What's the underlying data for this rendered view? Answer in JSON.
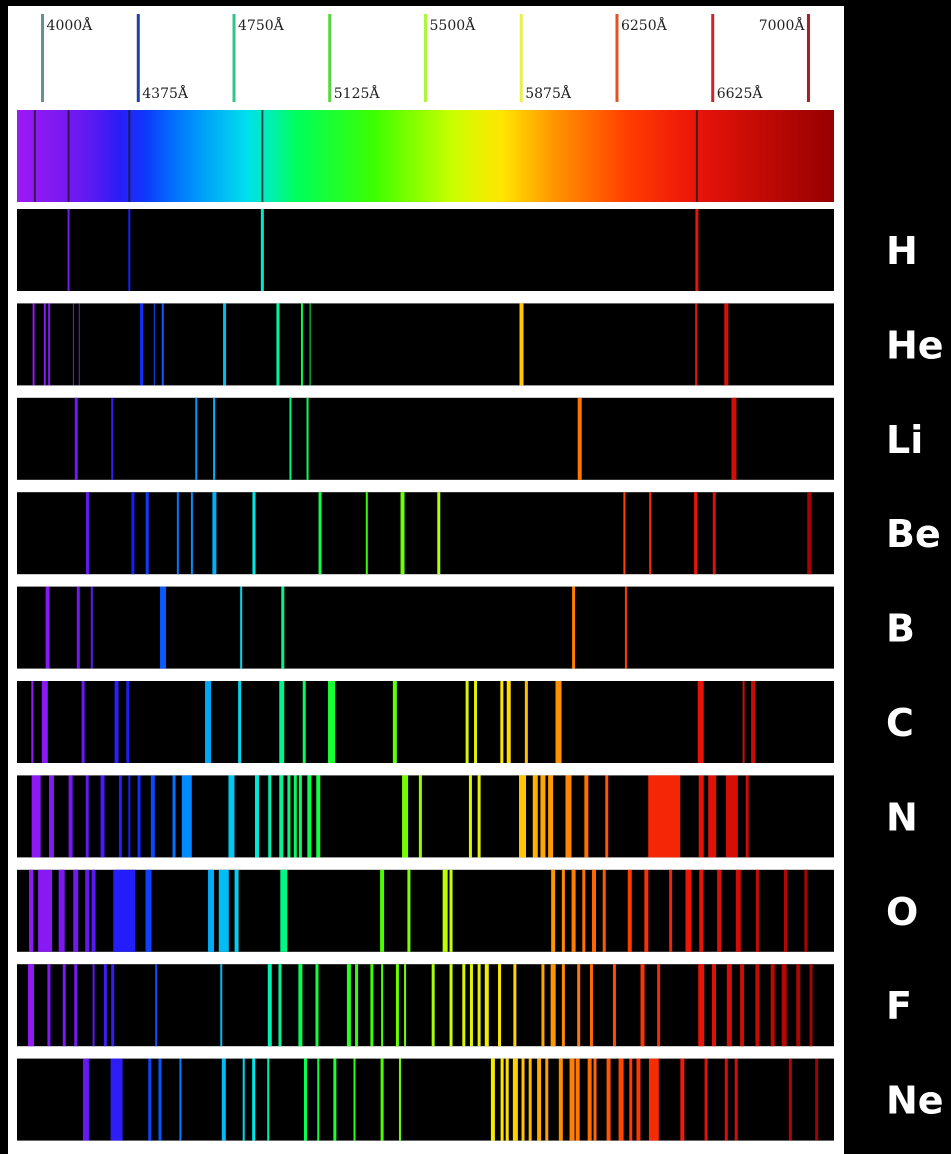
{
  "chart_data": {
    "type": "emission-spectra",
    "wavelength_unit": "Å",
    "xlim": [
      3900,
      7100
    ],
    "scale_ticks": [
      {
        "wavelength": 4000,
        "label": "4000Å",
        "color": "#6a8f8f",
        "row": "top"
      },
      {
        "wavelength": 4375,
        "label": "4375Å",
        "color": "#1f3fb0",
        "row": "bottom"
      },
      {
        "wavelength": 4750,
        "label": "4750Å",
        "color": "#33c488",
        "row": "top"
      },
      {
        "wavelength": 5125,
        "label": "5125Å",
        "color": "#55d63a",
        "row": "bottom"
      },
      {
        "wavelength": 5500,
        "label": "5500Å",
        "color": "#aef53d",
        "row": "top"
      },
      {
        "wavelength": 5875,
        "label": "5875Å",
        "color": "#eaf04b",
        "row": "bottom"
      },
      {
        "wavelength": 6250,
        "label": "6250Å",
        "color": "#e2541f",
        "row": "top"
      },
      {
        "wavelength": 6625,
        "label": "6625Å",
        "color": "#c9272d",
        "row": "bottom"
      },
      {
        "wavelength": 7000,
        "label": "7000Å",
        "color": "#b01a22",
        "row": "top"
      }
    ],
    "continuous_spectrum_absorption_lines": [
      3970,
      4102,
      4340,
      4861,
      6563
    ],
    "spectra": [
      {
        "element": "H",
        "lines": [
          {
            "w": 4102,
            "width": 2
          },
          {
            "w": 4340,
            "width": 2
          },
          {
            "w": 4861,
            "width": 3
          },
          {
            "w": 6563,
            "width": 3
          }
        ]
      },
      {
        "element": "He",
        "lines": [
          {
            "w": 3965,
            "width": 2
          },
          {
            "w": 4009,
            "width": 2
          },
          {
            "w": 4026,
            "width": 2
          },
          {
            "w": 4121,
            "width": 1
          },
          {
            "w": 4144,
            "width": 1
          },
          {
            "w": 4388,
            "width": 3
          },
          {
            "w": 4438,
            "width": 1
          },
          {
            "w": 4471,
            "width": 2
          },
          {
            "w": 4713,
            "width": 3
          },
          {
            "w": 4922,
            "width": 3
          },
          {
            "w": 5016,
            "width": 2
          },
          {
            "w": 5048,
            "width": 1
          },
          {
            "w": 5876,
            "width": 4
          },
          {
            "w": 6560,
            "width": 2
          },
          {
            "w": 6678,
            "width": 4
          }
        ]
      },
      {
        "element": "Li",
        "lines": [
          {
            "w": 4132,
            "width": 3
          },
          {
            "w": 4273,
            "width": 2
          },
          {
            "w": 4602,
            "width": 2
          },
          {
            "w": 4672,
            "width": 2
          },
          {
            "w": 4971,
            "width": 2
          },
          {
            "w": 5038,
            "width": 2
          },
          {
            "w": 6104,
            "width": 4
          },
          {
            "w": 6708,
            "width": 5
          }
        ]
      },
      {
        "element": "Be",
        "lines": [
          {
            "w": 4176,
            "width": 3
          },
          {
            "w": 4354,
            "width": 3
          },
          {
            "w": 4410,
            "width": 3
          },
          {
            "w": 4530,
            "width": 2
          },
          {
            "w": 4585,
            "width": 2
          },
          {
            "w": 4673,
            "width": 4
          },
          {
            "w": 4828,
            "width": 3
          },
          {
            "w": 5087,
            "width": 3
          },
          {
            "w": 5270,
            "width": 2
          },
          {
            "w": 5410,
            "width": 4
          },
          {
            "w": 5552,
            "width": 3
          },
          {
            "w": 6279,
            "width": 2
          },
          {
            "w": 6380,
            "width": 2
          },
          {
            "w": 6558,
            "width": 3
          },
          {
            "w": 6631,
            "width": 3
          },
          {
            "w": 7003,
            "width": 4
          }
        ]
      },
      {
        "element": "B",
        "lines": [
          {
            "w": 4020,
            "width": 4
          },
          {
            "w": 4140,
            "width": 3
          },
          {
            "w": 4193,
            "width": 2
          },
          {
            "w": 4472,
            "width": 6
          },
          {
            "w": 4778,
            "width": 2
          },
          {
            "w": 4941,
            "width": 3
          },
          {
            "w": 6080,
            "width": 3
          },
          {
            "w": 6285,
            "width": 2
          }
        ]
      },
      {
        "element": "C",
        "lines": [
          {
            "w": 3960,
            "width": 2
          },
          {
            "w": 4009,
            "width": 6
          },
          {
            "w": 4159,
            "width": 3
          },
          {
            "w": 4290,
            "width": 4
          },
          {
            "w": 4334,
            "width": 3
          },
          {
            "w": 4648,
            "width": 6
          },
          {
            "w": 4772,
            "width": 3
          },
          {
            "w": 4937,
            "width": 5
          },
          {
            "w": 5025,
            "width": 3
          },
          {
            "w": 5132,
            "width": 7
          },
          {
            "w": 5380,
            "width": 4
          },
          {
            "w": 5663,
            "width": 3
          },
          {
            "w": 5696,
            "width": 3
          },
          {
            "w": 5799,
            "width": 3
          },
          {
            "w": 5826,
            "width": 4
          },
          {
            "w": 5895,
            "width": 3
          },
          {
            "w": 6021,
            "width": 6
          },
          {
            "w": 6578,
            "width": 6
          },
          {
            "w": 6746,
            "width": 2
          },
          {
            "w": 6783,
            "width": 4
          }
        ]
      },
      {
        "element": "N",
        "lines": [
          {
            "w": 3975,
            "width": 9
          },
          {
            "w": 4035,
            "width": 5
          },
          {
            "w": 4110,
            "width": 4
          },
          {
            "w": 4175,
            "width": 3
          },
          {
            "w": 4235,
            "width": 4
          },
          {
            "w": 4305,
            "width": 3
          },
          {
            "w": 4340,
            "width": 2
          },
          {
            "w": 4378,
            "width": 3
          },
          {
            "w": 4432,
            "width": 4
          },
          {
            "w": 4515,
            "width": 3
          },
          {
            "w": 4565,
            "width": 10
          },
          {
            "w": 4740,
            "width": 6
          },
          {
            "w": 4840,
            "width": 4
          },
          {
            "w": 4890,
            "width": 3
          },
          {
            "w": 4935,
            "width": 4
          },
          {
            "w": 4965,
            "width": 3
          },
          {
            "w": 4990,
            "width": 3
          },
          {
            "w": 5010,
            "width": 3
          },
          {
            "w": 5045,
            "width": 4
          },
          {
            "w": 5080,
            "width": 4
          },
          {
            "w": 5420,
            "width": 6
          },
          {
            "w": 5480,
            "width": 3
          },
          {
            "w": 5676,
            "width": 3
          },
          {
            "w": 5710,
            "width": 3
          },
          {
            "w": 5880,
            "width": 7
          },
          {
            "w": 5930,
            "width": 5
          },
          {
            "w": 5960,
            "width": 5
          },
          {
            "w": 5990,
            "width": 5
          },
          {
            "w": 6060,
            "width": 6
          },
          {
            "w": 6130,
            "width": 4
          },
          {
            "w": 6210,
            "width": 3
          },
          {
            "w": 6435,
            "width": 32
          },
          {
            "w": 6580,
            "width": 5
          },
          {
            "w": 6623,
            "width": 8
          },
          {
            "w": 6700,
            "width": 12
          },
          {
            "w": 6760,
            "width": 3
          }
        ]
      },
      {
        "element": "O",
        "lines": [
          {
            "w": 3955,
            "width": 4
          },
          {
            "w": 4010,
            "width": 14
          },
          {
            "w": 4075,
            "width": 6
          },
          {
            "w": 4130,
            "width": 5
          },
          {
            "w": 4175,
            "width": 4
          },
          {
            "w": 4200,
            "width": 4
          },
          {
            "w": 4320,
            "width": 22
          },
          {
            "w": 4415,
            "width": 6
          },
          {
            "w": 4660,
            "width": 6
          },
          {
            "w": 4710,
            "width": 10
          },
          {
            "w": 4760,
            "width": 4
          },
          {
            "w": 4945,
            "width": 7
          },
          {
            "w": 5330,
            "width": 4
          },
          {
            "w": 5435,
            "width": 3
          },
          {
            "w": 5577,
            "width": 5
          },
          {
            "w": 5600,
            "width": 3
          },
          {
            "w": 6000,
            "width": 4
          },
          {
            "w": 6040,
            "width": 3
          },
          {
            "w": 6080,
            "width": 4
          },
          {
            "w": 6120,
            "width": 3
          },
          {
            "w": 6160,
            "width": 4
          },
          {
            "w": 6200,
            "width": 3
          },
          {
            "w": 6300,
            "width": 4
          },
          {
            "w": 6365,
            "width": 4
          },
          {
            "w": 6460,
            "width": 3
          },
          {
            "w": 6530,
            "width": 6
          },
          {
            "w": 6580,
            "width": 4
          },
          {
            "w": 6650,
            "width": 4
          },
          {
            "w": 6725,
            "width": 5
          },
          {
            "w": 6800,
            "width": 3
          },
          {
            "w": 6910,
            "width": 3
          },
          {
            "w": 6990,
            "width": 3
          }
        ]
      },
      {
        "element": "F",
        "lines": [
          {
            "w": 3955,
            "width": 6
          },
          {
            "w": 4025,
            "width": 3
          },
          {
            "w": 4085,
            "width": 3
          },
          {
            "w": 4130,
            "width": 3
          },
          {
            "w": 4200,
            "width": 2
          },
          {
            "w": 4246,
            "width": 3
          },
          {
            "w": 4275,
            "width": 3
          },
          {
            "w": 4445,
            "width": 2
          },
          {
            "w": 4700,
            "width": 2
          },
          {
            "w": 4890,
            "width": 4
          },
          {
            "w": 4930,
            "width": 3
          },
          {
            "w": 5010,
            "width": 4
          },
          {
            "w": 5075,
            "width": 3
          },
          {
            "w": 5200,
            "width": 4
          },
          {
            "w": 5230,
            "width": 3
          },
          {
            "w": 5290,
            "width": 3
          },
          {
            "w": 5330,
            "width": 2
          },
          {
            "w": 5390,
            "width": 3
          },
          {
            "w": 5420,
            "width": 2
          },
          {
            "w": 5530,
            "width": 3
          },
          {
            "w": 5600,
            "width": 3
          },
          {
            "w": 5650,
            "width": 3
          },
          {
            "w": 5680,
            "width": 3
          },
          {
            "w": 5710,
            "width": 3
          },
          {
            "w": 5740,
            "width": 4
          },
          {
            "w": 5790,
            "width": 3
          },
          {
            "w": 5850,
            "width": 3
          },
          {
            "w": 5960,
            "width": 3
          },
          {
            "w": 6000,
            "width": 5
          },
          {
            "w": 6040,
            "width": 3
          },
          {
            "w": 6100,
            "width": 3
          },
          {
            "w": 6150,
            "width": 3
          },
          {
            "w": 6240,
            "width": 3
          },
          {
            "w": 6350,
            "width": 4
          },
          {
            "w": 6413,
            "width": 3
          },
          {
            "w": 6580,
            "width": 6
          },
          {
            "w": 6630,
            "width": 4
          },
          {
            "w": 6690,
            "width": 5
          },
          {
            "w": 6740,
            "width": 4
          },
          {
            "w": 6800,
            "width": 4
          },
          {
            "w": 6860,
            "width": 4
          },
          {
            "w": 6905,
            "width": 5
          },
          {
            "w": 6960,
            "width": 4
          },
          {
            "w": 7010,
            "width": 3
          }
        ]
      },
      {
        "element": "Ne",
        "lines": [
          {
            "w": 4170,
            "width": 6
          },
          {
            "w": 4290,
            "width": 12
          },
          {
            "w": 4420,
            "width": 3
          },
          {
            "w": 4460,
            "width": 3
          },
          {
            "w": 4540,
            "width": 2
          },
          {
            "w": 4710,
            "width": 4
          },
          {
            "w": 4788,
            "width": 2
          },
          {
            "w": 4827,
            "width": 3
          },
          {
            "w": 4884,
            "width": 2
          },
          {
            "w": 5030,
            "width": 3
          },
          {
            "w": 5080,
            "width": 2
          },
          {
            "w": 5145,
            "width": 3
          },
          {
            "w": 5222,
            "width": 2
          },
          {
            "w": 5330,
            "width": 3
          },
          {
            "w": 5400,
            "width": 2
          },
          {
            "w": 5764,
            "width": 4
          },
          {
            "w": 5800,
            "width": 3
          },
          {
            "w": 5820,
            "width": 3
          },
          {
            "w": 5852,
            "width": 5
          },
          {
            "w": 5882,
            "width": 3
          },
          {
            "w": 5910,
            "width": 3
          },
          {
            "w": 5945,
            "width": 4
          },
          {
            "w": 5975,
            "width": 3
          },
          {
            "w": 6030,
            "width": 4
          },
          {
            "w": 6074,
            "width": 5
          },
          {
            "w": 6096,
            "width": 4
          },
          {
            "w": 6143,
            "width": 4
          },
          {
            "w": 6164,
            "width": 3
          },
          {
            "w": 6217,
            "width": 4
          },
          {
            "w": 6266,
            "width": 5
          },
          {
            "w": 6304,
            "width": 3
          },
          {
            "w": 6334,
            "width": 4
          },
          {
            "w": 6383,
            "width": 4
          },
          {
            "w": 6402,
            "width": 6
          },
          {
            "w": 6506,
            "width": 4
          },
          {
            "w": 6599,
            "width": 3
          },
          {
            "w": 6678,
            "width": 3
          },
          {
            "w": 6717,
            "width": 3
          },
          {
            "w": 6929,
            "width": 3
          },
          {
            "w": 7032,
            "width": 3
          }
        ]
      }
    ]
  }
}
